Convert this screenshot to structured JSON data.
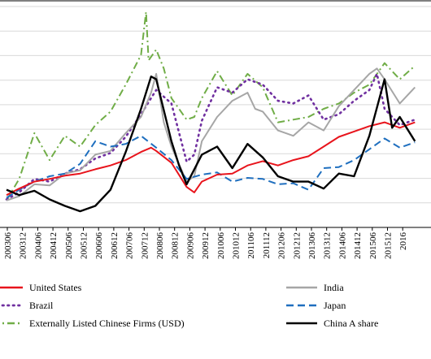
{
  "chart_data": {
    "type": "line",
    "title": "",
    "xlabel": "",
    "ylabel": "",
    "x_tick_labels": [
      "200306",
      "200312",
      "200406",
      "200412",
      "200506",
      "200512",
      "200606",
      "200612",
      "200706",
      "200712",
      "200806",
      "200812",
      "200906",
      "200912",
      "201006",
      "201012",
      "201106",
      "201112",
      "201206",
      "201212",
      "201306",
      "201312",
      "201406",
      "201412",
      "201506",
      "201512",
      "2016"
    ],
    "x_range": [
      "200301",
      "201606"
    ],
    "y_axis_ticks_shown": false,
    "grid": "horizontal",
    "legend": {
      "placement": "bottom",
      "columns": 2
    },
    "series": [
      {
        "name": "United States",
        "color": "#e8141c",
        "style": "solid",
        "points": [
          [
            "200301",
            30
          ],
          [
            "200306",
            42
          ],
          [
            "200312",
            55
          ],
          [
            "200406",
            60
          ],
          [
            "200412",
            66
          ],
          [
            "200506",
            70
          ],
          [
            "200512",
            78
          ],
          [
            "200606",
            85
          ],
          [
            "200612",
            95
          ],
          [
            "200706",
            110
          ],
          [
            "200710",
            118
          ],
          [
            "200712",
            112
          ],
          [
            "200806",
            90
          ],
          [
            "200812",
            45
          ],
          [
            "200903",
            35
          ],
          [
            "200906",
            55
          ],
          [
            "200912",
            68
          ],
          [
            "201006",
            70
          ],
          [
            "201012",
            85
          ],
          [
            "201106",
            93
          ],
          [
            "201112",
            85
          ],
          [
            "201206",
            95
          ],
          [
            "201212",
            102
          ],
          [
            "201306",
            120
          ],
          [
            "201312",
            138
          ],
          [
            "201406",
            148
          ],
          [
            "201412",
            158
          ],
          [
            "201506",
            165
          ],
          [
            "201512",
            155
          ],
          [
            "201606",
            165
          ]
        ]
      },
      {
        "name": "India",
        "color": "#a6a6a6",
        "style": "solid",
        "points": [
          [
            "200301",
            20
          ],
          [
            "200306",
            28
          ],
          [
            "200312",
            50
          ],
          [
            "200406",
            48
          ],
          [
            "200412",
            70
          ],
          [
            "200506",
            76
          ],
          [
            "200512",
            105
          ],
          [
            "200606",
            112
          ],
          [
            "200612",
            145
          ],
          [
            "200706",
            175
          ],
          [
            "200710",
            220
          ],
          [
            "200712",
            255
          ],
          [
            "200803",
            165
          ],
          [
            "200806",
            120
          ],
          [
            "200812",
            55
          ],
          [
            "200903",
            65
          ],
          [
            "200906",
            130
          ],
          [
            "200912",
            175
          ],
          [
            "201006",
            205
          ],
          [
            "201012",
            220
          ],
          [
            "201103",
            190
          ],
          [
            "201106",
            185
          ],
          [
            "201112",
            150
          ],
          [
            "201206",
            140
          ],
          [
            "201212",
            165
          ],
          [
            "201306",
            150
          ],
          [
            "201312",
            195
          ],
          [
            "201406",
            225
          ],
          [
            "201412",
            255
          ],
          [
            "201503",
            265
          ],
          [
            "201506",
            245
          ],
          [
            "201512",
            200
          ],
          [
            "201606",
            230
          ]
        ]
      },
      {
        "name": "Brazil",
        "color": "#7030a0",
        "style": "dotted",
        "points": [
          [
            "200301",
            22
          ],
          [
            "200306",
            35
          ],
          [
            "200312",
            60
          ],
          [
            "200406",
            55
          ],
          [
            "200412",
            70
          ],
          [
            "200506",
            78
          ],
          [
            "200512",
            98
          ],
          [
            "200606",
            108
          ],
          [
            "200612",
            138
          ],
          [
            "200706",
            180
          ],
          [
            "200710",
            210
          ],
          [
            "200712",
            225
          ],
          [
            "200806",
            200
          ],
          [
            "200812",
            92
          ],
          [
            "200903",
            105
          ],
          [
            "200906",
            168
          ],
          [
            "200912",
            230
          ],
          [
            "201006",
            220
          ],
          [
            "201012",
            245
          ],
          [
            "201106",
            235
          ],
          [
            "201112",
            205
          ],
          [
            "201206",
            200
          ],
          [
            "201212",
            215
          ],
          [
            "201306",
            170
          ],
          [
            "201312",
            180
          ],
          [
            "201406",
            205
          ],
          [
            "201412",
            225
          ],
          [
            "201503",
            255
          ],
          [
            "201506",
            190
          ],
          [
            "201512",
            160
          ],
          [
            "201606",
            170
          ]
        ]
      },
      {
        "name": "Japan",
        "color": "#1f6fbf",
        "style": "dashed",
        "points": [
          [
            "200301",
            25
          ],
          [
            "200306",
            40
          ],
          [
            "200312",
            55
          ],
          [
            "200406",
            65
          ],
          [
            "200412",
            70
          ],
          [
            "200506",
            88
          ],
          [
            "200512",
            130
          ],
          [
            "200606",
            120
          ],
          [
            "200612",
            125
          ],
          [
            "200706",
            140
          ],
          [
            "200712",
            118
          ],
          [
            "200806",
            95
          ],
          [
            "200812",
            60
          ],
          [
            "200906",
            68
          ],
          [
            "200912",
            72
          ],
          [
            "201006",
            55
          ],
          [
            "201012",
            62
          ],
          [
            "201106",
            60
          ],
          [
            "201112",
            50
          ],
          [
            "201206",
            52
          ],
          [
            "201212",
            40
          ],
          [
            "201306",
            80
          ],
          [
            "201312",
            82
          ],
          [
            "201406",
            95
          ],
          [
            "201412",
            115
          ],
          [
            "201506",
            135
          ],
          [
            "201512",
            118
          ],
          [
            "201606",
            128
          ]
        ]
      },
      {
        "name": "Externally Listed Chinese Firms (USD)",
        "color": "#70ad47",
        "style": "dash-dot",
        "points": [
          [
            "200301",
            20
          ],
          [
            "200306",
            60
          ],
          [
            "200312",
            145
          ],
          [
            "200406",
            95
          ],
          [
            "200412",
            140
          ],
          [
            "200506",
            120
          ],
          [
            "200512",
            160
          ],
          [
            "200606",
            185
          ],
          [
            "200612",
            235
          ],
          [
            "200706",
            290
          ],
          [
            "200708",
            370
          ],
          [
            "200709",
            280
          ],
          [
            "200712",
            300
          ],
          [
            "200803",
            265
          ],
          [
            "200806",
            210
          ],
          [
            "200812",
            170
          ],
          [
            "200903",
            175
          ],
          [
            "200906",
            210
          ],
          [
            "200912",
            260
          ],
          [
            "201006",
            215
          ],
          [
            "201012",
            255
          ],
          [
            "201106",
            230
          ],
          [
            "201112",
            165
          ],
          [
            "201206",
            170
          ],
          [
            "201212",
            175
          ],
          [
            "201306",
            190
          ],
          [
            "201312",
            200
          ],
          [
            "201406",
            220
          ],
          [
            "201412",
            235
          ],
          [
            "201506",
            275
          ],
          [
            "201512",
            245
          ],
          [
            "201606",
            270
          ]
        ]
      },
      {
        "name": "China A share",
        "color": "#000000",
        "style": "solid",
        "points": [
          [
            "200301",
            40
          ],
          [
            "200306",
            30
          ],
          [
            "200312",
            38
          ],
          [
            "200406",
            22
          ],
          [
            "200412",
            10
          ],
          [
            "200506",
            0
          ],
          [
            "200512",
            10
          ],
          [
            "200606",
            40
          ],
          [
            "200612",
            110
          ],
          [
            "200706",
            190
          ],
          [
            "200710",
            250
          ],
          [
            "200712",
            245
          ],
          [
            "200806",
            130
          ],
          [
            "200809",
            85
          ],
          [
            "200812",
            50
          ],
          [
            "200906",
            105
          ],
          [
            "200912",
            120
          ],
          [
            "201006",
            80
          ],
          [
            "201012",
            125
          ],
          [
            "201106",
            100
          ],
          [
            "201112",
            65
          ],
          [
            "201206",
            55
          ],
          [
            "201212",
            55
          ],
          [
            "201306",
            42
          ],
          [
            "201312",
            70
          ],
          [
            "201406",
            65
          ],
          [
            "201412",
            140
          ],
          [
            "201506",
            245
          ],
          [
            "201509",
            155
          ],
          [
            "201512",
            175
          ],
          [
            "201606",
            130
          ]
        ]
      }
    ]
  }
}
